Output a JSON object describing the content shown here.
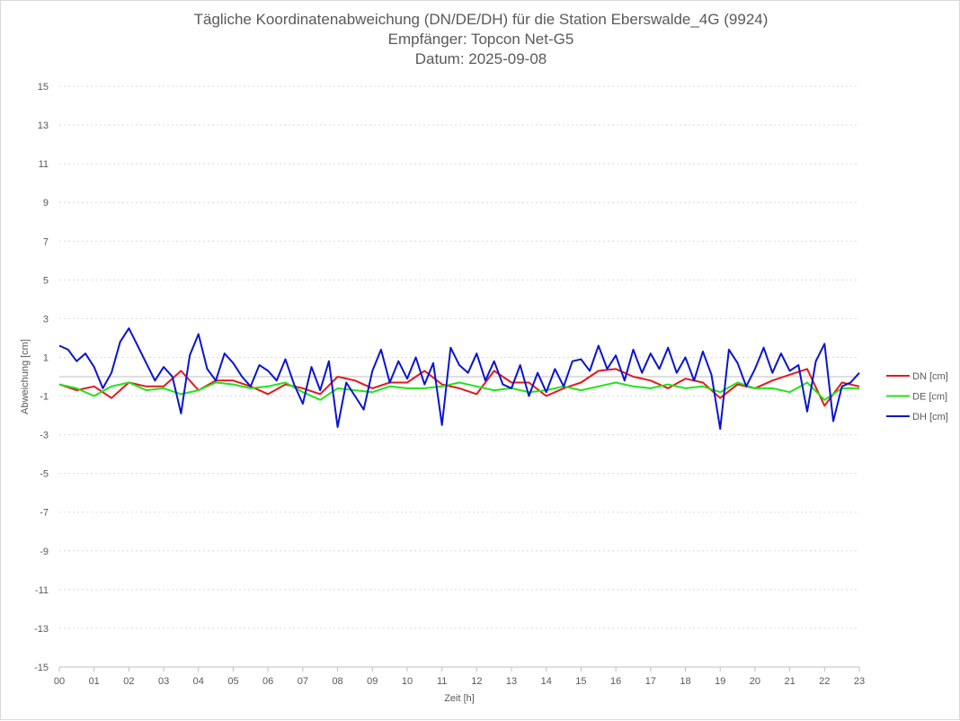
{
  "chart_data": {
    "type": "line",
    "title_lines": [
      "Tägliche Koordinatenabweichung (DN/DE/DH) für die Station Eberswalde_4G (9924)",
      "Empfänger: Topcon Net-G5",
      "Datum: 2025-09-08"
    ],
    "xlabel": "Zeit [h]",
    "ylabel": "Abweichung [cm]",
    "xlim": [
      0,
      23
    ],
    "ylim": [
      -15,
      15
    ],
    "x_ticks": [
      "00",
      "01",
      "02",
      "03",
      "04",
      "05",
      "06",
      "07",
      "08",
      "09",
      "10",
      "11",
      "12",
      "13",
      "14",
      "15",
      "16",
      "17",
      "18",
      "19",
      "20",
      "21",
      "22",
      "23"
    ],
    "y_ticks": [
      15,
      13,
      11,
      9,
      7,
      5,
      3,
      1,
      -1,
      -3,
      -5,
      -7,
      -9,
      -11,
      -13,
      -15
    ],
    "grid": true,
    "legend_position": "right",
    "series": [
      {
        "name": "DN [cm]",
        "color": "#e31a1c",
        "x": [
          0,
          0.5,
          1,
          1.5,
          2,
          2.5,
          3,
          3.5,
          4,
          4.5,
          5,
          5.5,
          6,
          6.5,
          7,
          7.5,
          8,
          8.5,
          9,
          9.5,
          10,
          10.5,
          11,
          11.5,
          12,
          12.5,
          13,
          13.5,
          14,
          14.5,
          15,
          15.5,
          16,
          16.5,
          17,
          17.5,
          18,
          18.5,
          19,
          19.5,
          20,
          20.5,
          21,
          21.5,
          22,
          22.5,
          23
        ],
        "values": [
          -0.4,
          -0.7,
          -0.5,
          -1.1,
          -0.3,
          -0.5,
          -0.5,
          0.3,
          -0.7,
          -0.2,
          -0.2,
          -0.5,
          -0.9,
          -0.4,
          -0.6,
          -0.9,
          0.0,
          -0.2,
          -0.6,
          -0.3,
          -0.3,
          0.3,
          -0.4,
          -0.6,
          -0.9,
          0.3,
          -0.3,
          -0.3,
          -1.0,
          -0.6,
          -0.3,
          0.3,
          0.4,
          0.0,
          -0.2,
          -0.6,
          -0.1,
          -0.3,
          -1.1,
          -0.4,
          -0.6,
          -0.2,
          0.1,
          0.4,
          -1.5,
          -0.3,
          -0.5
        ]
      },
      {
        "name": "DE [cm]",
        "color": "#22e31a",
        "x": [
          0,
          0.5,
          1,
          1.5,
          2,
          2.5,
          3,
          3.5,
          4,
          4.5,
          5,
          5.5,
          6,
          6.5,
          7,
          7.5,
          8,
          8.5,
          9,
          9.5,
          10,
          10.5,
          11,
          11.5,
          12,
          12.5,
          13,
          13.5,
          14,
          14.5,
          15,
          15.5,
          16,
          16.5,
          17,
          17.5,
          18,
          18.5,
          19,
          19.5,
          20,
          20.5,
          21,
          21.5,
          22,
          22.5,
          23
        ],
        "values": [
          -0.4,
          -0.6,
          -1.0,
          -0.5,
          -0.3,
          -0.7,
          -0.6,
          -0.9,
          -0.7,
          -0.3,
          -0.4,
          -0.6,
          -0.5,
          -0.3,
          -0.8,
          -1.2,
          -0.6,
          -0.7,
          -0.8,
          -0.5,
          -0.6,
          -0.6,
          -0.5,
          -0.3,
          -0.5,
          -0.7,
          -0.6,
          -0.8,
          -0.7,
          -0.5,
          -0.7,
          -0.5,
          -0.3,
          -0.5,
          -0.6,
          -0.4,
          -0.6,
          -0.5,
          -0.8,
          -0.3,
          -0.6,
          -0.6,
          -0.8,
          -0.3,
          -1.2,
          -0.6,
          -0.6
        ]
      },
      {
        "name": "DH [cm]",
        "color": "#0a14d2",
        "x": [
          0,
          0.25,
          0.5,
          0.75,
          1,
          1.25,
          1.5,
          1.75,
          2,
          2.25,
          2.5,
          2.75,
          3,
          3.25,
          3.5,
          3.75,
          4,
          4.25,
          4.5,
          4.75,
          5,
          5.25,
          5.5,
          5.75,
          6,
          6.25,
          6.5,
          6.75,
          7,
          7.25,
          7.5,
          7.75,
          8,
          8.25,
          8.5,
          8.75,
          9,
          9.25,
          9.5,
          9.75,
          10,
          10.25,
          10.5,
          10.75,
          11,
          11.25,
          11.5,
          11.75,
          12,
          12.25,
          12.5,
          12.75,
          13,
          13.25,
          13.5,
          13.75,
          14,
          14.25,
          14.5,
          14.75,
          15,
          15.25,
          15.5,
          15.75,
          16,
          16.25,
          16.5,
          16.75,
          17,
          17.25,
          17.5,
          17.75,
          18,
          18.25,
          18.5,
          18.75,
          19,
          19.25,
          19.5,
          19.75,
          20,
          20.25,
          20.5,
          20.75,
          21,
          21.25,
          21.5,
          21.75,
          22,
          22.25,
          22.5,
          22.75,
          23
        ],
        "values": [
          1.6,
          1.4,
          0.8,
          1.2,
          0.5,
          -0.6,
          0.2,
          1.8,
          2.5,
          1.6,
          0.7,
          -0.2,
          0.5,
          0.0,
          -1.9,
          1.1,
          2.2,
          0.4,
          -0.2,
          1.2,
          0.7,
          0.0,
          -0.5,
          0.6,
          0.3,
          -0.2,
          0.9,
          -0.4,
          -1.4,
          0.5,
          -0.7,
          0.8,
          -2.6,
          -0.3,
          -1.0,
          -1.7,
          0.3,
          1.4,
          -0.3,
          0.8,
          -0.1,
          1.0,
          -0.4,
          0.7,
          -2.5,
          1.5,
          0.6,
          0.2,
          1.2,
          -0.2,
          0.8,
          -0.4,
          -0.6,
          0.6,
          -1.0,
          0.2,
          -0.8,
          0.4,
          -0.5,
          0.8,
          0.9,
          0.3,
          1.6,
          0.4,
          1.1,
          -0.2,
          1.4,
          0.2,
          1.2,
          0.4,
          1.5,
          0.2,
          1.0,
          -0.2,
          1.3,
          0.1,
          -2.7,
          1.4,
          0.7,
          -0.5,
          0.4,
          1.5,
          0.2,
          1.2,
          0.3,
          0.6,
          -1.8,
          0.8,
          1.7,
          -2.3,
          -0.5,
          -0.3,
          0.2
        ]
      }
    ]
  }
}
